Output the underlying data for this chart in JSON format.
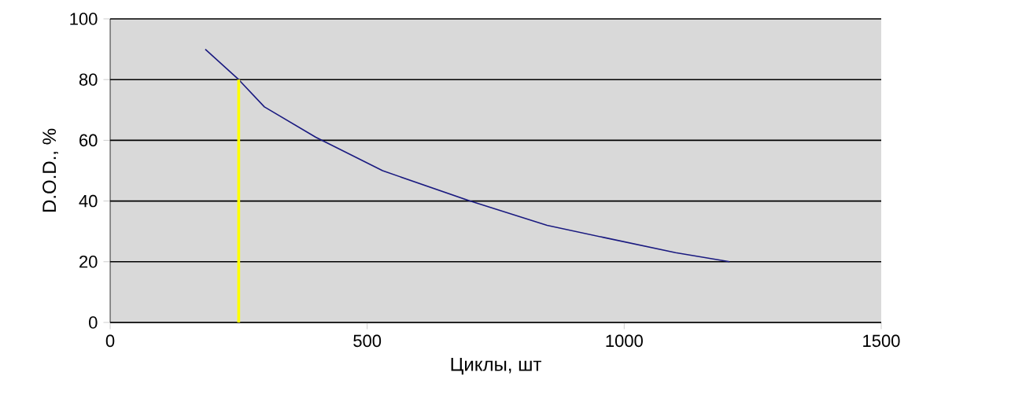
{
  "chart_data": {
    "type": "line",
    "xlabel": "Циклы, шт",
    "ylabel": "D.O.D., %",
    "xlim": [
      0,
      1500
    ],
    "ylim": [
      0,
      100
    ],
    "xticks": [
      0,
      500,
      1000,
      1500
    ],
    "yticks": [
      0,
      20,
      40,
      60,
      80,
      100
    ],
    "grid": "y",
    "marker": "none",
    "series": [
      {
        "color": "#1a1a80",
        "x": [
          185,
          250,
          300,
          400,
          530,
          700,
          850,
          960,
          1100,
          1205
        ],
        "values": [
          90,
          80,
          71,
          61,
          50,
          40,
          32,
          28,
          23,
          20
        ]
      },
      {
        "color": "#ffff00",
        "x": [
          250,
          250
        ],
        "values": [
          0,
          80
        ]
      }
    ]
  }
}
